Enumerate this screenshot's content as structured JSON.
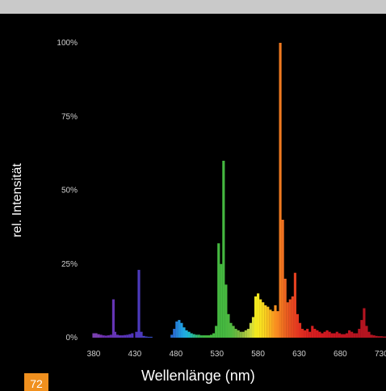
{
  "page_number": "72",
  "chart_data": {
    "type": "bar",
    "title": "",
    "xlabel": "Wellenlänge (nm)",
    "ylabel": "rel. Intensität",
    "xlim": [
      375,
      760
    ],
    "ylim": [
      0,
      100
    ],
    "x_ticks": [
      380,
      430,
      480,
      530,
      580,
      630,
      680,
      730
    ],
    "y_ticks": [
      0,
      25,
      50,
      75,
      100
    ],
    "y_tick_labels": [
      "0%",
      "25%",
      "50%",
      "75%",
      "100%"
    ],
    "grid": false,
    "legend": "none",
    "bar_width_nm": 2.5,
    "spectrum": [
      {
        "x": 380,
        "y": 1.5,
        "color": "#7a3fb0"
      },
      {
        "x": 383,
        "y": 1.5,
        "color": "#7a3fb0"
      },
      {
        "x": 386,
        "y": 1.2,
        "color": "#7a3fb0"
      },
      {
        "x": 389,
        "y": 1.0,
        "color": "#7433b0"
      },
      {
        "x": 392,
        "y": 0.8,
        "color": "#6a30b0"
      },
      {
        "x": 395,
        "y": 0.7,
        "color": "#6a30b0"
      },
      {
        "x": 398,
        "y": 0.8,
        "color": "#6a30b0"
      },
      {
        "x": 401,
        "y": 1.0,
        "color": "#6530b0"
      },
      {
        "x": 404,
        "y": 13,
        "color": "#6535b5"
      },
      {
        "x": 406,
        "y": 2,
        "color": "#6535b5"
      },
      {
        "x": 409,
        "y": 1.0,
        "color": "#5f35b5"
      },
      {
        "x": 412,
        "y": 0.8,
        "color": "#5f35b5"
      },
      {
        "x": 415,
        "y": 0.8,
        "color": "#5a35b8"
      },
      {
        "x": 418,
        "y": 0.9,
        "color": "#5a35b8"
      },
      {
        "x": 421,
        "y": 1.0,
        "color": "#5535b8"
      },
      {
        "x": 424,
        "y": 1.2,
        "color": "#5535b8"
      },
      {
        "x": 427,
        "y": 1.5,
        "color": "#5035bb"
      },
      {
        "x": 432,
        "y": 2,
        "color": "#5035bb"
      },
      {
        "x": 435,
        "y": 23,
        "color": "#4c3abd"
      },
      {
        "x": 438,
        "y": 2,
        "color": "#4c3abd"
      },
      {
        "x": 441,
        "y": 0.6,
        "color": "#4540c0"
      },
      {
        "x": 444,
        "y": 0.4,
        "color": "#4045c2"
      },
      {
        "x": 447,
        "y": 0.3,
        "color": "#3a4ac5"
      },
      {
        "x": 450,
        "y": 0.3,
        "color": "#3550c8"
      },
      {
        "x": 475,
        "y": 1.0,
        "color": "#2a6ad0"
      },
      {
        "x": 478,
        "y": 3,
        "color": "#2a70d5"
      },
      {
        "x": 481,
        "y": 5.5,
        "color": "#2580d8"
      },
      {
        "x": 484,
        "y": 6,
        "color": "#2590dc"
      },
      {
        "x": 487,
        "y": 5,
        "color": "#209ce0"
      },
      {
        "x": 490,
        "y": 3.5,
        "color": "#20a8e0"
      },
      {
        "x": 493,
        "y": 2.5,
        "color": "#20b0d8"
      },
      {
        "x": 496,
        "y": 2,
        "color": "#20b8c8"
      },
      {
        "x": 499,
        "y": 1.5,
        "color": "#25b8a8"
      },
      {
        "x": 502,
        "y": 1.2,
        "color": "#2ab890"
      },
      {
        "x": 505,
        "y": 1.0,
        "color": "#30b878"
      },
      {
        "x": 508,
        "y": 1.0,
        "color": "#38b860"
      },
      {
        "x": 511,
        "y": 0.8,
        "color": "#3cb850"
      },
      {
        "x": 514,
        "y": 0.8,
        "color": "#40b848"
      },
      {
        "x": 517,
        "y": 0.8,
        "color": "#42b840"
      },
      {
        "x": 520,
        "y": 0.8,
        "color": "#45b840"
      },
      {
        "x": 523,
        "y": 1.0,
        "color": "#45b840"
      },
      {
        "x": 526,
        "y": 1.5,
        "color": "#45b840"
      },
      {
        "x": 529,
        "y": 4,
        "color": "#45b840"
      },
      {
        "x": 532,
        "y": 32,
        "color": "#45b840"
      },
      {
        "x": 535,
        "y": 25,
        "color": "#45b840"
      },
      {
        "x": 538,
        "y": 60,
        "color": "#45b840"
      },
      {
        "x": 541,
        "y": 18,
        "color": "#48b840"
      },
      {
        "x": 544,
        "y": 8,
        "color": "#4cb840"
      },
      {
        "x": 547,
        "y": 5,
        "color": "#50b840"
      },
      {
        "x": 550,
        "y": 4,
        "color": "#5ab840"
      },
      {
        "x": 553,
        "y": 3,
        "color": "#68b840"
      },
      {
        "x": 556,
        "y": 2.5,
        "color": "#78b840"
      },
      {
        "x": 559,
        "y": 2,
        "color": "#88b840"
      },
      {
        "x": 562,
        "y": 2,
        "color": "#98c040"
      },
      {
        "x": 565,
        "y": 2.5,
        "color": "#a8c840"
      },
      {
        "x": 568,
        "y": 3,
        "color": "#b8d040"
      },
      {
        "x": 571,
        "y": 5,
        "color": "#cad840"
      },
      {
        "x": 574,
        "y": 7,
        "color": "#dde030"
      },
      {
        "x": 577,
        "y": 14,
        "color": "#f0e820"
      },
      {
        "x": 580,
        "y": 15,
        "color": "#f5e820"
      },
      {
        "x": 583,
        "y": 13,
        "color": "#f8e020"
      },
      {
        "x": 586,
        "y": 12,
        "color": "#f8d820"
      },
      {
        "x": 589,
        "y": 11,
        "color": "#f8cc20"
      },
      {
        "x": 592,
        "y": 10.5,
        "color": "#f8c020"
      },
      {
        "x": 595,
        "y": 9.5,
        "color": "#f8b020"
      },
      {
        "x": 598,
        "y": 9,
        "color": "#f8a020"
      },
      {
        "x": 601,
        "y": 11,
        "color": "#f89020"
      },
      {
        "x": 604,
        "y": 9,
        "color": "#f88820"
      },
      {
        "x": 607,
        "y": 100,
        "color": "#f07a20"
      },
      {
        "x": 610,
        "y": 40,
        "color": "#ee7020"
      },
      {
        "x": 613,
        "y": 20,
        "color": "#ec6420"
      },
      {
        "x": 616,
        "y": 12,
        "color": "#ea5a20"
      },
      {
        "x": 619,
        "y": 13,
        "color": "#e85020"
      },
      {
        "x": 622,
        "y": 14,
        "color": "#e64820"
      },
      {
        "x": 625,
        "y": 22,
        "color": "#e44020"
      },
      {
        "x": 628,
        "y": 8,
        "color": "#e23820"
      },
      {
        "x": 631,
        "y": 5,
        "color": "#e03020"
      },
      {
        "x": 634,
        "y": 3,
        "color": "#de2c20"
      },
      {
        "x": 637,
        "y": 2.5,
        "color": "#dc2820"
      },
      {
        "x": 640,
        "y": 3,
        "color": "#da2420"
      },
      {
        "x": 643,
        "y": 2,
        "color": "#d82020"
      },
      {
        "x": 646,
        "y": 4,
        "color": "#d82020"
      },
      {
        "x": 649,
        "y": 3,
        "color": "#d61e20"
      },
      {
        "x": 652,
        "y": 2.5,
        "color": "#d41c20"
      },
      {
        "x": 655,
        "y": 2,
        "color": "#d21c20"
      },
      {
        "x": 658,
        "y": 1.5,
        "color": "#d01a20"
      },
      {
        "x": 661,
        "y": 2,
        "color": "#ce1a20"
      },
      {
        "x": 664,
        "y": 2.5,
        "color": "#cc1820"
      },
      {
        "x": 667,
        "y": 2,
        "color": "#ca1820"
      },
      {
        "x": 670,
        "y": 1.5,
        "color": "#c81620"
      },
      {
        "x": 673,
        "y": 1.5,
        "color": "#c61620"
      },
      {
        "x": 676,
        "y": 2,
        "color": "#c41520"
      },
      {
        "x": 679,
        "y": 1.5,
        "color": "#c21520"
      },
      {
        "x": 682,
        "y": 1.2,
        "color": "#c01420"
      },
      {
        "x": 685,
        "y": 1.2,
        "color": "#be1420"
      },
      {
        "x": 688,
        "y": 1.5,
        "color": "#bc1420"
      },
      {
        "x": 691,
        "y": 2.5,
        "color": "#ba1420"
      },
      {
        "x": 694,
        "y": 2,
        "color": "#b81420"
      },
      {
        "x": 697,
        "y": 1.5,
        "color": "#b61420"
      },
      {
        "x": 700,
        "y": 1.5,
        "color": "#b41420"
      },
      {
        "x": 703,
        "y": 3,
        "color": "#b41420"
      },
      {
        "x": 706,
        "y": 6,
        "color": "#b41420"
      },
      {
        "x": 709,
        "y": 10,
        "color": "#b41420"
      },
      {
        "x": 712,
        "y": 4,
        "color": "#b41420"
      },
      {
        "x": 715,
        "y": 2,
        "color": "#b21420"
      },
      {
        "x": 718,
        "y": 1.0,
        "color": "#b01420"
      },
      {
        "x": 721,
        "y": 0.8,
        "color": "#ae1420"
      },
      {
        "x": 724,
        "y": 0.6,
        "color": "#ac1420"
      },
      {
        "x": 727,
        "y": 0.5,
        "color": "#aa1420"
      },
      {
        "x": 730,
        "y": 0.5,
        "color": "#a81420"
      },
      {
        "x": 733,
        "y": 0.4,
        "color": "#a61420"
      },
      {
        "x": 736,
        "y": 0.4,
        "color": "#a41420"
      },
      {
        "x": 739,
        "y": 0.4,
        "color": "#a21420"
      },
      {
        "x": 742,
        "y": 0.4,
        "color": "#a01420"
      },
      {
        "x": 745,
        "y": 0.4,
        "color": "#a01420"
      },
      {
        "x": 748,
        "y": 0.4,
        "color": "#a01420"
      },
      {
        "x": 751,
        "y": 0.4,
        "color": "#a01420"
      }
    ]
  }
}
